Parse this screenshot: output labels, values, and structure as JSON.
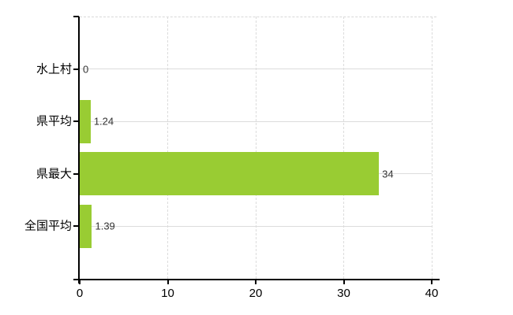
{
  "chart_data": {
    "type": "bar",
    "orientation": "horizontal",
    "title": "",
    "xlabel": "",
    "ylabel": "",
    "categories": [
      "水上村",
      "県平均",
      "県最大",
      "全国平均"
    ],
    "values": [
      0,
      1.24,
      34,
      1.39
    ],
    "value_labels": [
      "0",
      "1.24",
      "34",
      "1.39"
    ],
    "xlim": [
      0,
      40
    ],
    "xticks": [
      0,
      10,
      20,
      30,
      40
    ],
    "xtick_labels": [
      "0",
      "10",
      "20",
      "30",
      "40"
    ],
    "grid": "on",
    "legend": "none",
    "bar_color": "#99cc33",
    "grid_color": "#dcdcdc",
    "axis_color": "#000000",
    "category_label_color": "#000000",
    "value_label_color": "#333333"
  }
}
